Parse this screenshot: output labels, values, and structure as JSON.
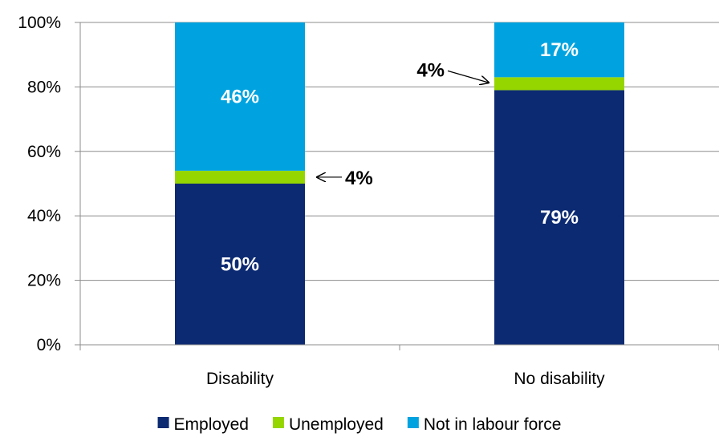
{
  "chart_data": {
    "type": "bar",
    "stacked": true,
    "categories": [
      "Disability",
      "No disability"
    ],
    "series": [
      {
        "name": "Employed",
        "color": "#0c2a72",
        "values": [
          50,
          79
        ],
        "labels": [
          "50%",
          "79%"
        ],
        "label_color": "#ffffff"
      },
      {
        "name": "Unemployed",
        "color": "#95d600",
        "values": [
          4,
          4
        ],
        "labels": [
          "4%",
          "4%"
        ],
        "label_color": "#000000",
        "label_style": "arrow-callout"
      },
      {
        "name": "Not in labour force",
        "color": "#00a3e0",
        "values": [
          46,
          17
        ],
        "labels": [
          "46%",
          "17%"
        ],
        "label_color": "#ffffff"
      }
    ],
    "ylim": [
      0,
      100
    ],
    "yticks": [
      "0%",
      "20%",
      "40%",
      "60%",
      "80%",
      "100%"
    ],
    "grid": true,
    "legend": "bottom"
  }
}
